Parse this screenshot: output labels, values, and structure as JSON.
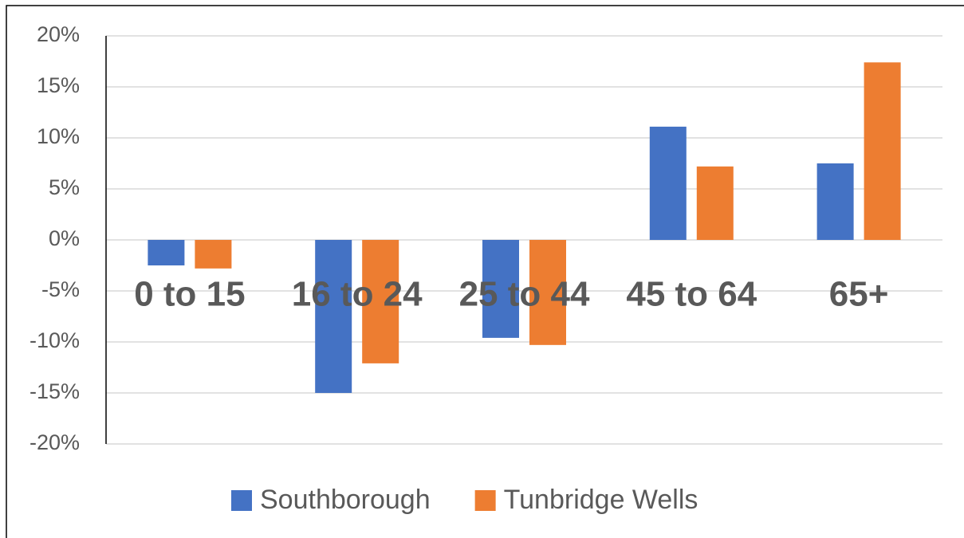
{
  "chart_data": {
    "type": "bar",
    "categories": [
      "0 to 15",
      "16 to 24",
      "25 to 44",
      "45 to 64",
      "65+"
    ],
    "series": [
      {
        "name": "Southborough",
        "color": "#4472c4",
        "values": [
          -2.5,
          -15,
          -9.6,
          11.1,
          7.5
        ]
      },
      {
        "name": "Tunbridge Wells",
        "color": "#ed7d31",
        "values": [
          -2.8,
          -12.1,
          -10.3,
          7.2,
          17.4
        ]
      }
    ],
    "ylim": [
      -20,
      20
    ],
    "yticks": [
      {
        "value": -20,
        "label": "-20%"
      },
      {
        "value": -15,
        "label": "-15%"
      },
      {
        "value": -10,
        "label": "-10%"
      },
      {
        "value": -5,
        "label": "-5%"
      },
      {
        "value": 0,
        "label": "0%"
      },
      {
        "value": 5,
        "label": "5%"
      },
      {
        "value": 10,
        "label": "10%"
      },
      {
        "value": 15,
        "label": "15%"
      },
      {
        "value": 20,
        "label": "20%"
      }
    ],
    "grid": true,
    "legend": "bottom"
  }
}
